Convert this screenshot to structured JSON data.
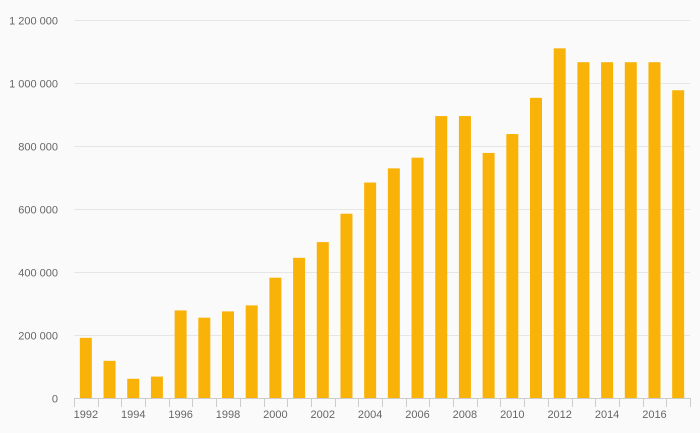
{
  "chart_data": {
    "type": "bar",
    "categories": [
      "1992",
      "1993",
      "1994",
      "1995",
      "1996",
      "1997",
      "1998",
      "1999",
      "2000",
      "2001",
      "2002",
      "2003",
      "2004",
      "2005",
      "2006",
      "2007",
      "2008",
      "2009",
      "2010",
      "2011",
      "2012",
      "2013",
      "2014",
      "2015",
      "2016",
      "2017"
    ],
    "values": [
      191000,
      118000,
      61000,
      68000,
      278000,
      255000,
      275000,
      294000,
      382000,
      445000,
      495000,
      585000,
      684000,
      729000,
      763000,
      895000,
      895000,
      778000,
      838000,
      953000,
      1110000,
      1066000,
      1066000,
      1066000,
      1066000,
      977000
    ],
    "ylim": [
      0,
      1200000
    ],
    "yticks": [
      {
        "value": 0,
        "label": "0"
      },
      {
        "value": 200000,
        "label": "200 000"
      },
      {
        "value": 400000,
        "label": "400 000"
      },
      {
        "value": 600000,
        "label": "600 000"
      },
      {
        "value": 800000,
        "label": "800 000"
      },
      {
        "value": 1000000,
        "label": "1 000 000"
      },
      {
        "value": 1200000,
        "label": "1 200 000"
      }
    ],
    "xtick_labels": [
      "1992",
      "1994",
      "1996",
      "1998",
      "2000",
      "2002",
      "2004",
      "2006",
      "2008",
      "2010",
      "2012",
      "2014",
      "2016"
    ],
    "title": "",
    "xlabel": "",
    "ylabel": "",
    "grid": true,
    "legend": "none",
    "colors": {
      "bar": "#f9b208",
      "grid": "#e6e6e6",
      "axis": "#cccccc",
      "text": "#666666",
      "background": "#fafafa"
    }
  }
}
